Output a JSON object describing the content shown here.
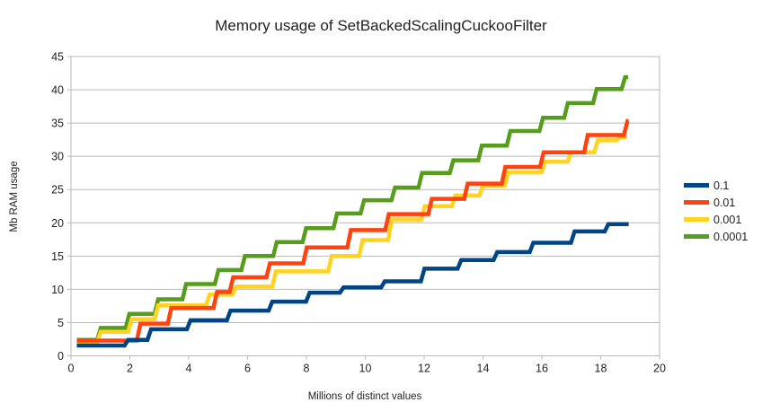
{
  "colors": {
    "background": "#ffffff",
    "grid": "#b9b9b9",
    "text": "#1f1f1f"
  },
  "chart_data": {
    "type": "line",
    "line_style": "step",
    "title": "Memory usage of SetBackedScalingCuckooFilter",
    "xlabel": "Millions of distinct values",
    "ylabel": "Mb RAM usage",
    "xlim": [
      0,
      20
    ],
    "ylim": [
      0,
      45
    ],
    "x_ticks": [
      0,
      2,
      4,
      6,
      8,
      10,
      12,
      14,
      16,
      18,
      20
    ],
    "y_ticks": [
      0,
      5,
      10,
      15,
      20,
      25,
      30,
      35,
      40,
      45
    ],
    "grid": "horizontal",
    "legend_position": "right",
    "line_width": 4.5,
    "series": [
      {
        "name": "0.0001",
        "color": "#579D1C",
        "points": [
          [
            0.2,
            2.4
          ],
          [
            0.95,
            4.2
          ],
          [
            1.92,
            6.3
          ],
          [
            2.9,
            8.5
          ],
          [
            3.85,
            10.8
          ],
          [
            4.95,
            12.9
          ],
          [
            5.85,
            15.0
          ],
          [
            6.93,
            17.1
          ],
          [
            7.93,
            19.2
          ],
          [
            8.98,
            21.4
          ],
          [
            9.9,
            23.4
          ],
          [
            10.95,
            25.3
          ],
          [
            11.87,
            27.5
          ],
          [
            12.93,
            29.4
          ],
          [
            13.9,
            31.6
          ],
          [
            14.87,
            33.8
          ],
          [
            15.98,
            35.8
          ],
          [
            16.82,
            38.0
          ],
          [
            17.8,
            40.1
          ],
          [
            18.77,
            41.9
          ]
        ],
        "end_x": 18.93
      },
      {
        "name": "0.001",
        "color": "#FFD320",
        "points": [
          [
            0.2,
            2.1
          ],
          [
            0.95,
            3.6
          ],
          [
            2.0,
            5.5
          ],
          [
            2.9,
            7.6
          ],
          [
            4.65,
            9.2
          ],
          [
            5.55,
            10.4
          ],
          [
            6.9,
            12.7
          ],
          [
            8.8,
            15.0
          ],
          [
            9.85,
            17.4
          ],
          [
            10.84,
            20.5
          ],
          [
            11.96,
            22.5
          ],
          [
            13.0,
            24.1
          ],
          [
            13.94,
            25.6
          ],
          [
            14.8,
            27.6
          ],
          [
            16.05,
            29.2
          ],
          [
            16.94,
            30.6
          ],
          [
            17.84,
            32.4
          ],
          [
            18.6,
            32.9
          ]
        ],
        "end_x": 18.9
      },
      {
        "name": "0.01",
        "color": "#FF420E",
        "points": [
          [
            0.2,
            2.3
          ],
          [
            2.3,
            4.85
          ],
          [
            3.35,
            7.2
          ],
          [
            4.9,
            9.6
          ],
          [
            5.45,
            11.8
          ],
          [
            6.7,
            13.9
          ],
          [
            7.95,
            16.3
          ],
          [
            9.45,
            18.9
          ],
          [
            10.74,
            21.3
          ],
          [
            12.2,
            23.6
          ],
          [
            13.42,
            25.9
          ],
          [
            14.7,
            28.4
          ],
          [
            16.0,
            30.6
          ],
          [
            17.5,
            33.2
          ],
          [
            18.85,
            35.3
          ]
        ],
        "end_x": 18.95
      },
      {
        "name": "0.1",
        "color": "#004586",
        "points": [
          [
            0.2,
            1.55
          ],
          [
            1.88,
            2.4
          ],
          [
            2.66,
            4.0
          ],
          [
            4.0,
            5.35
          ],
          [
            5.36,
            6.8
          ],
          [
            6.78,
            8.15
          ],
          [
            8.05,
            9.5
          ],
          [
            9.2,
            10.3
          ],
          [
            10.6,
            11.2
          ],
          [
            11.95,
            13.1
          ],
          [
            13.2,
            14.4
          ],
          [
            14.42,
            15.6
          ],
          [
            15.65,
            17.0
          ],
          [
            17.05,
            18.7
          ],
          [
            18.2,
            19.8
          ]
        ],
        "end_x": 18.95
      }
    ],
    "legend_order": [
      "0.1",
      "0.01",
      "0.001",
      "0.0001"
    ]
  }
}
